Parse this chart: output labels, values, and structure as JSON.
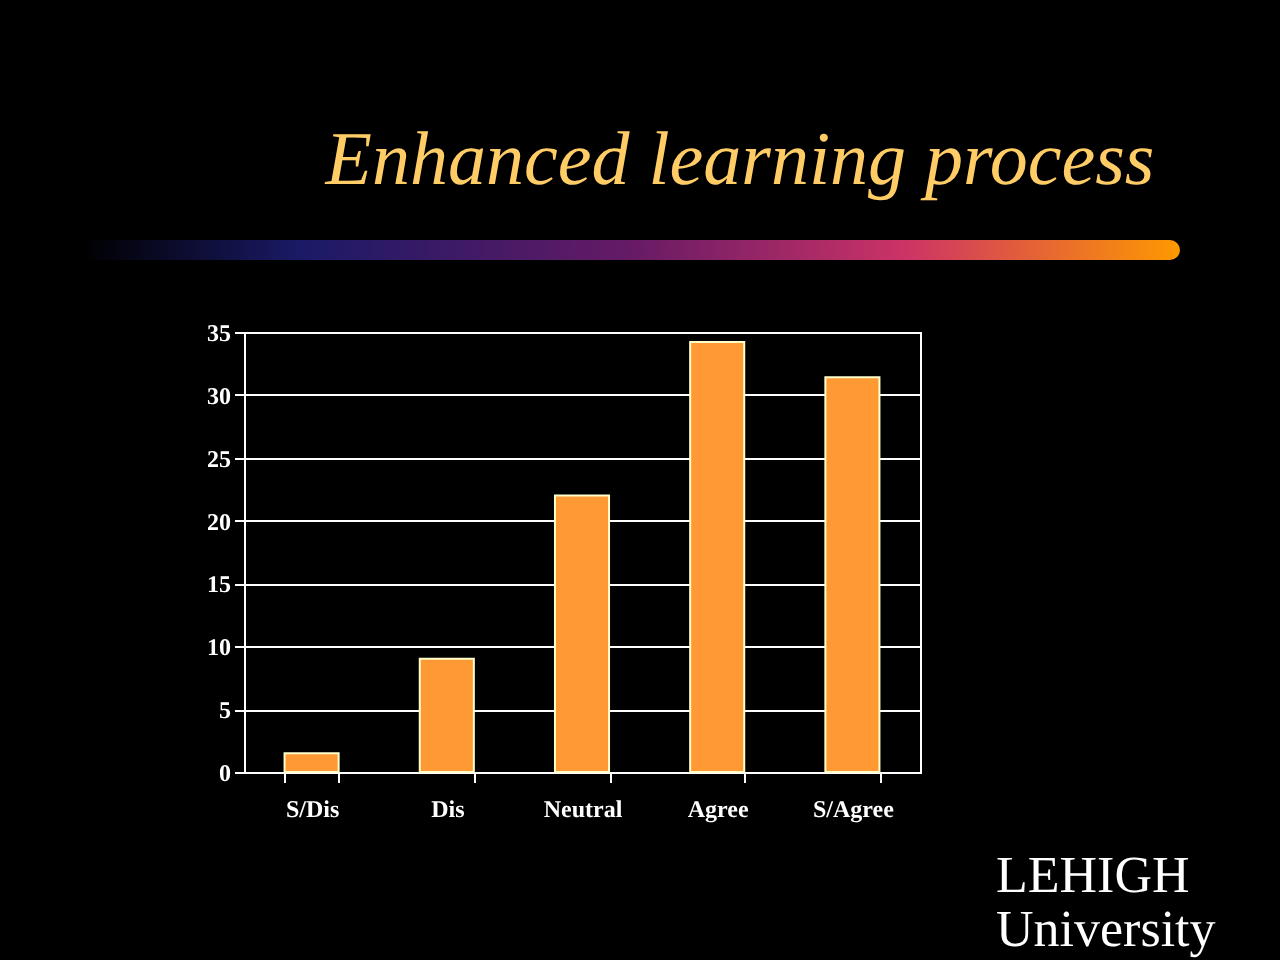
{
  "chart_data": {
    "type": "bar",
    "title": "Enhanced learning process",
    "categories": [
      "S/Dis",
      "Dis",
      "Neutral",
      "Agree",
      "S/Agree"
    ],
    "values": [
      1.5,
      9,
      22,
      34.2,
      31.4
    ],
    "color": "#ff9933",
    "ylim": [
      0,
      35
    ],
    "yticks": [
      0,
      5,
      10,
      15,
      20,
      25,
      30,
      35
    ],
    "grid": "y",
    "annotations": [
      "LEHIGH University"
    ]
  }
}
